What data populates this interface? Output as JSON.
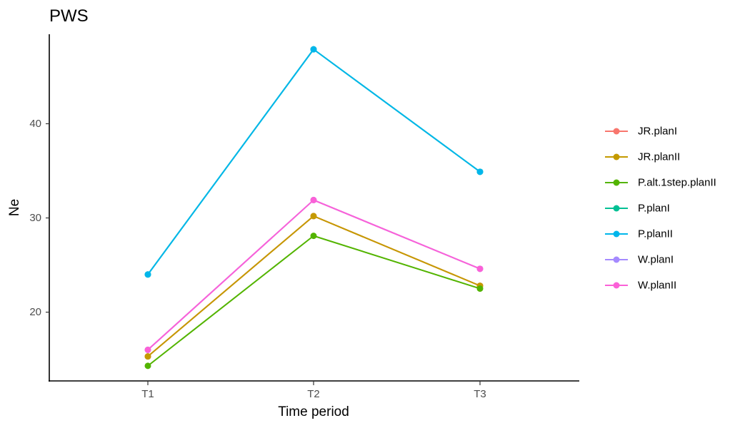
{
  "chart_data": {
    "type": "line",
    "title": "PWS",
    "xlabel": "Time period",
    "ylabel": "Ne",
    "categories": [
      "T1",
      "T2",
      "T3"
    ],
    "ylim": [
      12.7,
      49.5
    ],
    "yticks": [
      20,
      30,
      40
    ],
    "grid": false,
    "legend_position": "right",
    "series": [
      {
        "name": "JR.planI",
        "color": "#F8766D",
        "values": [
          15.3,
          30.2,
          22.8
        ]
      },
      {
        "name": "JR.planII",
        "color": "#C49A00",
        "values": [
          15.3,
          30.2,
          22.8
        ]
      },
      {
        "name": "P.alt.1step.planII",
        "color": "#53B400",
        "values": [
          14.3,
          28.1,
          22.5
        ]
      },
      {
        "name": "P.planI",
        "color": "#00C094",
        "values": [
          24.0,
          47.9,
          34.9
        ]
      },
      {
        "name": "P.planII",
        "color": "#00B6EB",
        "values": [
          24.0,
          47.9,
          34.9
        ]
      },
      {
        "name": "W.planI",
        "color": "#A58AFF",
        "values": [
          16.0,
          31.9,
          24.6
        ]
      },
      {
        "name": "W.planII",
        "color": "#FB61D7",
        "values": [
          16.0,
          31.9,
          24.6
        ]
      }
    ]
  }
}
